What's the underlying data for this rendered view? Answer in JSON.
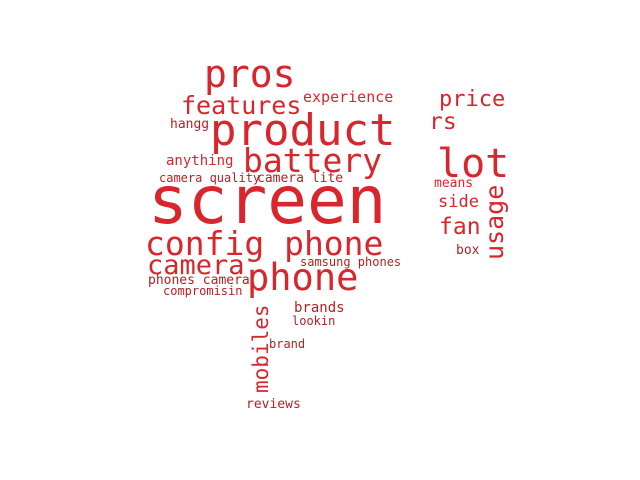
{
  "colors": {
    "primary": "#d8262c",
    "dark": "#b71f24",
    "background": "#ffffff"
  },
  "words": {
    "screen": "screen",
    "product": "product",
    "pros": "pros",
    "battery": "battery",
    "features": "features",
    "experience": "experience",
    "hangg": "hangg",
    "anything": "anything",
    "camera_quality": "camera quality",
    "camera_lite": "camera lite",
    "config_phone": "config phone",
    "camera": "camera",
    "phone": "phone",
    "samsung_phones": "samsung phones",
    "phones_camera": "phones camera",
    "compromisin": "compromisin",
    "brands": "brands",
    "lookin": "lookin",
    "brand": "brand",
    "mobiles": "mobiles",
    "reviews": "reviews",
    "price": "price",
    "rs": "rs",
    "lot": "lot",
    "means": "means",
    "side": "side",
    "fan": "fan",
    "box": "box",
    "usage": "usage"
  }
}
